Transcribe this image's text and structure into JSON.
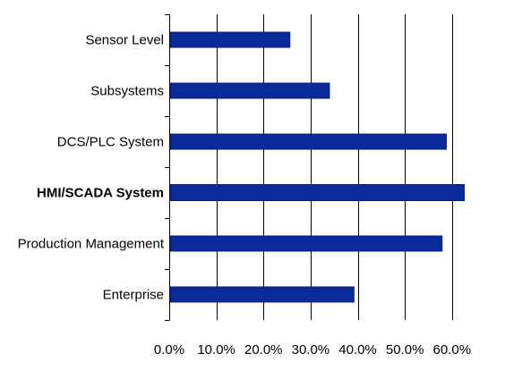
{
  "chart_data": {
    "type": "bar",
    "orientation": "horizontal",
    "categories": [
      "Sensor Level",
      "Subsystems",
      "DCS/PLC System",
      "HMI/SCADA System",
      "Production Management",
      "Enterprise"
    ],
    "emphasized_category": "HMI/SCADA System",
    "values": [
      25.6,
      34.0,
      58.8,
      62.6,
      57.9,
      39.2
    ],
    "value_unit": "%",
    "xlim": [
      0,
      60
    ],
    "xticks": [
      0,
      10,
      20,
      30,
      40,
      50,
      60
    ],
    "xtick_labels": [
      "0.0%",
      "10.0%",
      "20.0%",
      "30.0%",
      "40.0%",
      "50.0%",
      "60.0%"
    ],
    "title": "",
    "xlabel": "",
    "ylabel": "",
    "grid": "vertical lines at each x tick",
    "legend": "none",
    "colors": {
      "bar_fill": "#0a2a9a",
      "bar_stroke": "#0a1f70",
      "grid": "#000000",
      "axis": "#000000",
      "text": "#000000"
    }
  }
}
